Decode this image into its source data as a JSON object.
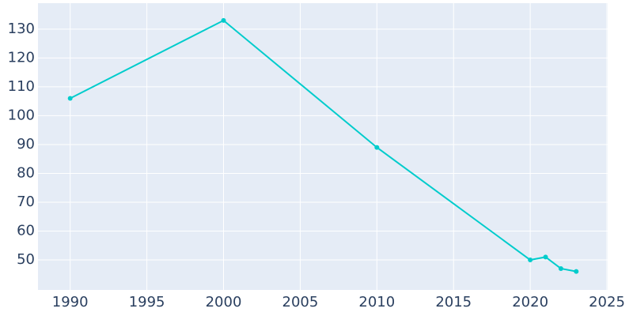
{
  "chart_data": {
    "type": "line",
    "x": [
      1990,
      2000,
      2010,
      2020,
      2021,
      2022,
      2023
    ],
    "series": [
      {
        "color": "#00cccc",
        "values": [
          106,
          133,
          89,
          50,
          51,
          47,
          46
        ]
      }
    ],
    "xlim": [
      1987.9,
      2025.05
    ],
    "xticks": [
      1990,
      1995,
      2000,
      2005,
      2010,
      2015,
      2020,
      2025
    ],
    "ylim": [
      39.6,
      139.0
    ],
    "yticks": [
      50,
      60,
      70,
      80,
      90,
      100,
      110,
      120,
      130
    ],
    "grid": true
  }
}
